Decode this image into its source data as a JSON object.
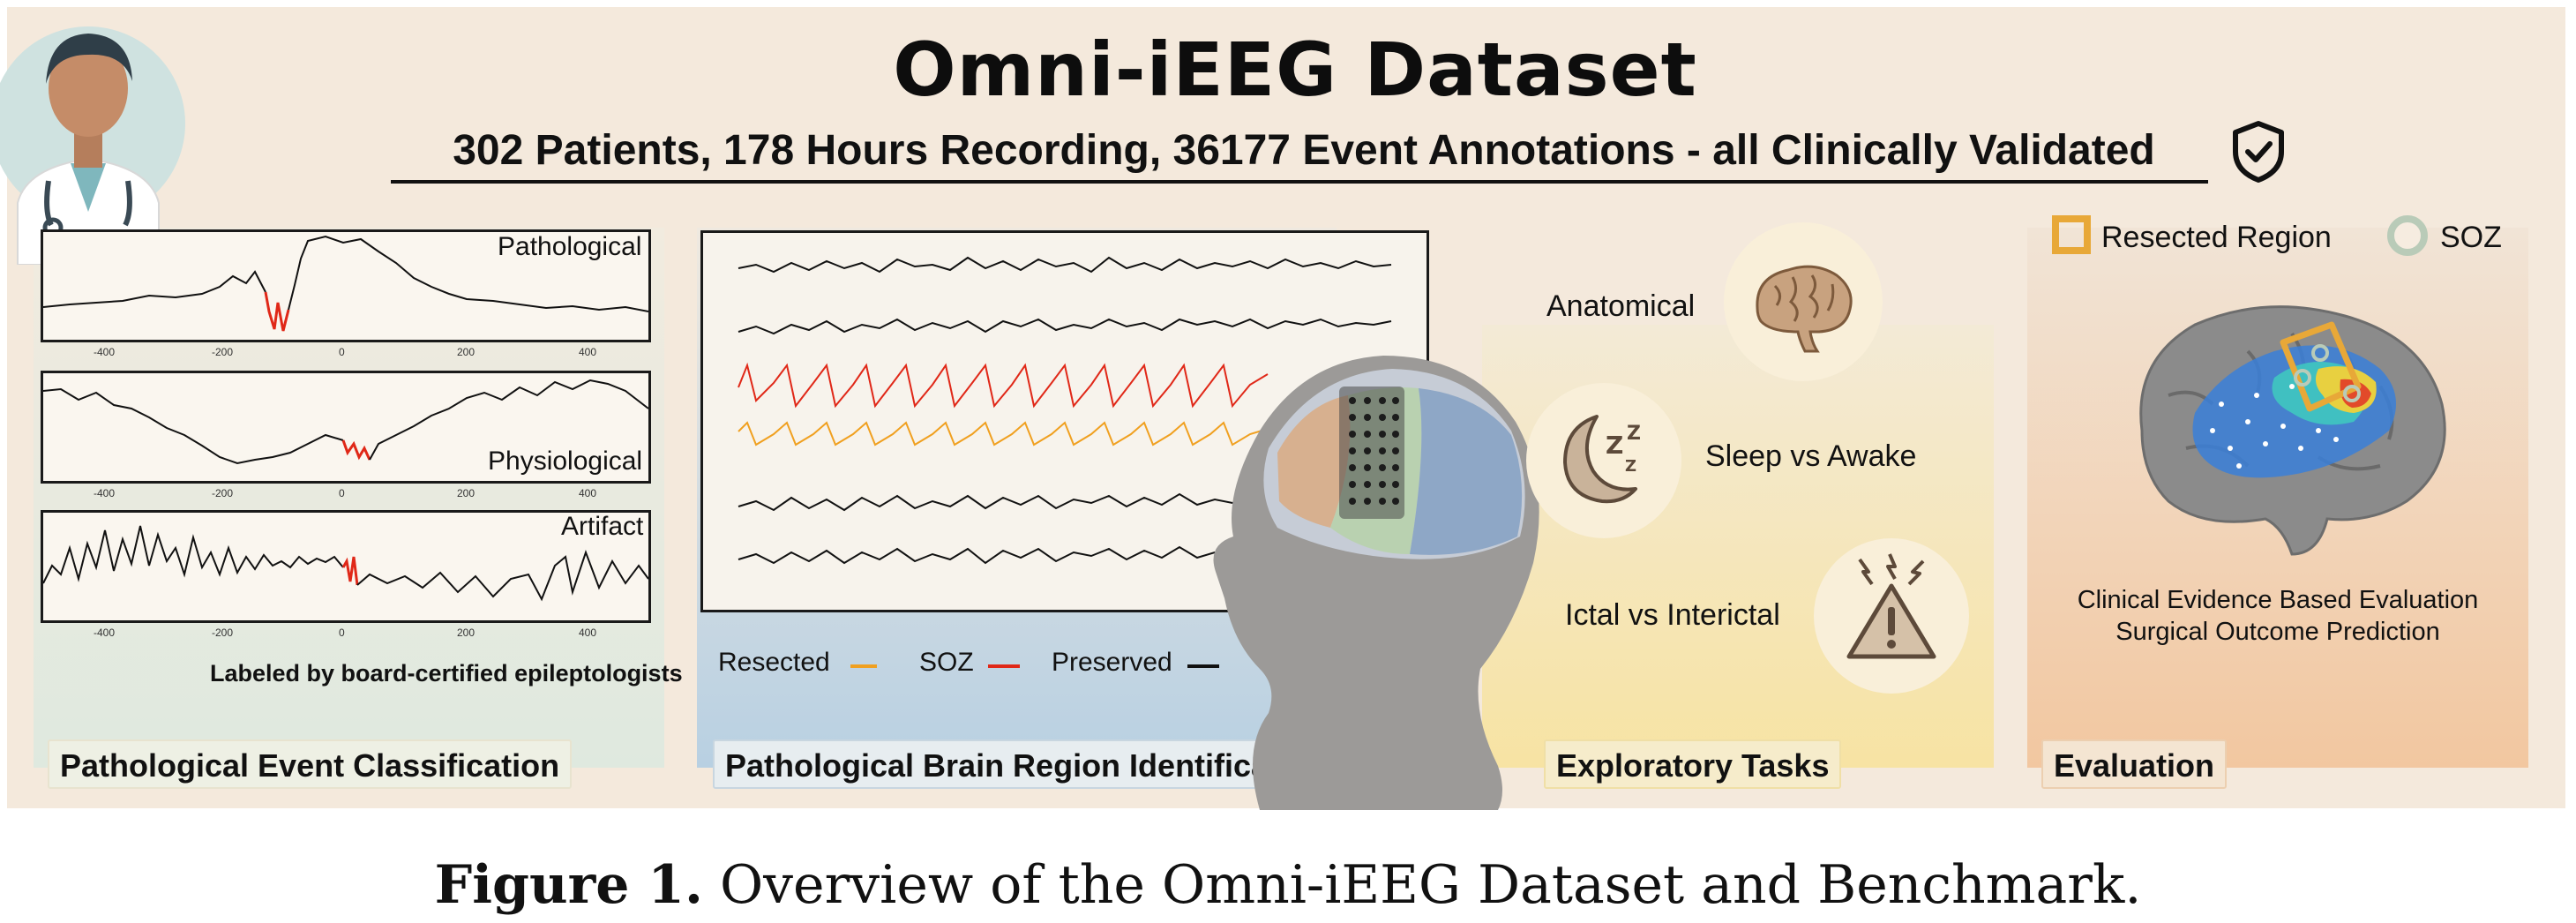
{
  "header": {
    "title": "Omni-iEEG Dataset",
    "subtitle": "302 Patients, 178 Hours Recording, 36177 Event Annotations - all Clinically Validated"
  },
  "panel1": {
    "tag": "Pathological Event Classification",
    "traces": [
      "Pathological",
      "Physiological",
      "Artifact"
    ],
    "ticks": [
      "-400",
      "-200",
      "0",
      "200",
      "400"
    ],
    "note": "Labeled by board-certified epileptologists"
  },
  "panel2": {
    "tag": "Pathological Brain Region Identification",
    "legend": [
      "Resected",
      "SOZ",
      "Preserved"
    ]
  },
  "panel3": {
    "tag": "Exploratory Tasks",
    "tasks": [
      "Anatomical",
      "Sleep vs Awake",
      "Ictal vs Interictal"
    ]
  },
  "panel4": {
    "tag": "Evaluation",
    "legend": [
      "Resected Region",
      "SOZ"
    ],
    "line1": "Clinical Evidence Based Evaluation",
    "line2": "Surgical Outcome Prediction"
  },
  "caption": {
    "label": "Figure 1.",
    "text": "Overview of the Omni-iEEG Dataset and Benchmark."
  },
  "colors": {
    "resected": "#f0a020",
    "soz": "#e03020",
    "preserved": "#111111"
  }
}
